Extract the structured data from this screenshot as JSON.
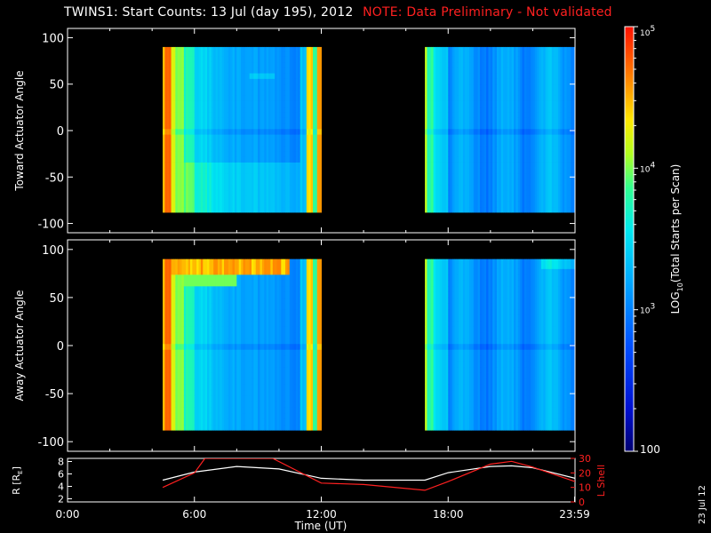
{
  "header": {
    "title": "TWINS1: Start Counts: 13 Jul (day 195), 2012",
    "note": "NOTE: Data Preliminary - Not validated"
  },
  "stamp": "23 Jul 12",
  "colors": {
    "background": "#000000",
    "axes": "#ffffff",
    "note": "#ff2020",
    "lshell": "#ff2020",
    "radius": "#ffffff"
  },
  "chart_data": [
    {
      "type": "heatmap",
      "panel": "toward",
      "ylabel": "Toward Actuator Angle",
      "ylim": [
        -110,
        110
      ],
      "yticks": [
        100,
        50,
        0,
        -50,
        -100
      ],
      "xlim": [
        0,
        24
      ],
      "data_blocks_hours": [
        [
          4.5,
          12.0
        ],
        [
          16.9,
          24.0
        ]
      ],
      "angle_range": [
        -88,
        90
      ],
      "profile": "toward"
    },
    {
      "type": "heatmap",
      "panel": "away",
      "ylabel": "Away Actuator Angle",
      "ylim": [
        -110,
        110
      ],
      "yticks": [
        100,
        50,
        0,
        -50,
        -100
      ],
      "xlim": [
        0,
        24
      ],
      "data_blocks_hours": [
        [
          4.5,
          12.0
        ],
        [
          16.9,
          24.0
        ]
      ],
      "angle_range": [
        -88,
        90
      ],
      "profile": "away"
    },
    {
      "type": "colorbar",
      "label_main": "LOG",
      "label_sub": "10",
      "label_rest": "(Total Starts per Scan)",
      "scale": "log",
      "range": [
        100,
        100000
      ],
      "ticks": [
        {
          "value": 100000,
          "base": "10",
          "exp": "5"
        },
        {
          "value": 10000,
          "base": "10",
          "exp": "4"
        },
        {
          "value": 1000,
          "base": "10",
          "exp": "3"
        },
        {
          "value": 100,
          "base": "100",
          "exp": ""
        }
      ]
    },
    {
      "type": "line",
      "panel": "ephemeris",
      "xlabel": "Time (UT)",
      "xlim": [
        0,
        24
      ],
      "xticks": [
        "0:00",
        "6:00",
        "12:00",
        "18:00",
        "23:59"
      ],
      "left_axis": {
        "label_main": "R [R",
        "label_sub": "E",
        "label_end": "]",
        "range": [
          1.5,
          8.5
        ],
        "ticks": [
          8,
          6,
          4,
          2
        ]
      },
      "right_axis": {
        "label": "L Shell",
        "range": [
          0,
          30
        ],
        "ticks": [
          30,
          20,
          10,
          0
        ]
      },
      "series": [
        {
          "axis": "left",
          "x": [
            4.5,
            6,
            8,
            10,
            12,
            14,
            16,
            16.9,
            18,
            20,
            21,
            22,
            24
          ],
          "y": [
            5.0,
            6.3,
            7.2,
            6.8,
            5.3,
            5.0,
            5.0,
            5.0,
            6.2,
            7.2,
            7.3,
            7.0,
            5.3
          ]
        },
        {
          "axis": "right",
          "x": [
            4.5,
            6.0,
            6.5,
            9.7,
            12.0,
            14.0,
            16.9,
            18.0,
            20.0,
            21.0,
            22.0,
            24.0
          ],
          "y": [
            10,
            20,
            30,
            30,
            13,
            12,
            8,
            14,
            26,
            28,
            24,
            14
          ]
        }
      ]
    }
  ]
}
